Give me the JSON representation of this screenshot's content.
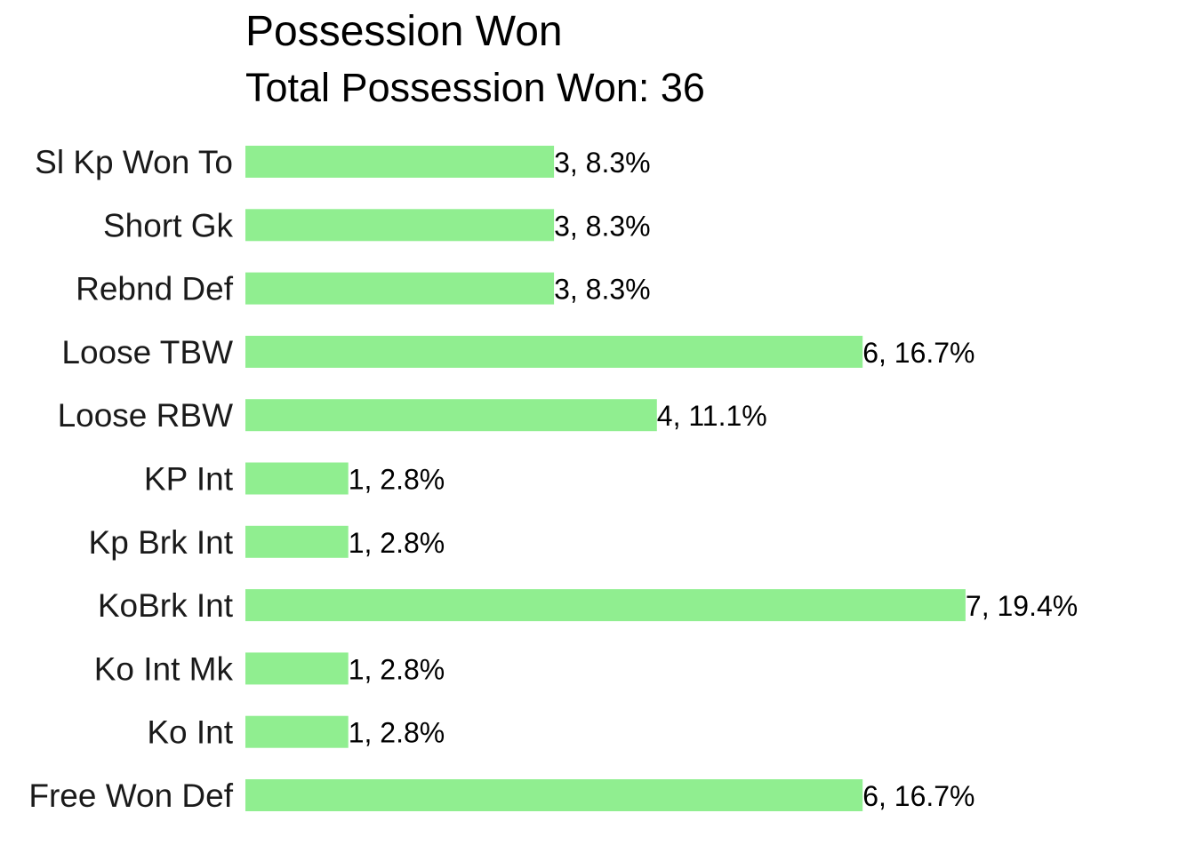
{
  "chart_data": {
    "type": "bar",
    "orientation": "horizontal",
    "title": "Possession Won",
    "subtitle": "Total Possession Won: 36",
    "categories": [
      "Sl Kp Won To",
      "Short Gk",
      "Rebnd Def",
      "Loose TBW",
      "Loose RBW",
      "KP Int",
      "Kp Brk Int",
      "KoBrk Int",
      "Ko Int Mk",
      "Ko Int",
      "Free Won Def"
    ],
    "values": [
      3,
      3,
      3,
      6,
      4,
      1,
      1,
      7,
      1,
      1,
      6
    ],
    "data_labels": [
      "3, 8.3%",
      "3, 8.3%",
      "3, 8.3%",
      "6, 16.7%",
      "4, 11.1%",
      "1, 2.8%",
      "1, 2.8%",
      "7, 19.4%",
      "1, 2.8%",
      "1, 2.8%",
      "6, 16.7%"
    ],
    "xlim": [
      0,
      7
    ],
    "grid": false,
    "legend": "none",
    "bar_color": "#90ee90"
  }
}
